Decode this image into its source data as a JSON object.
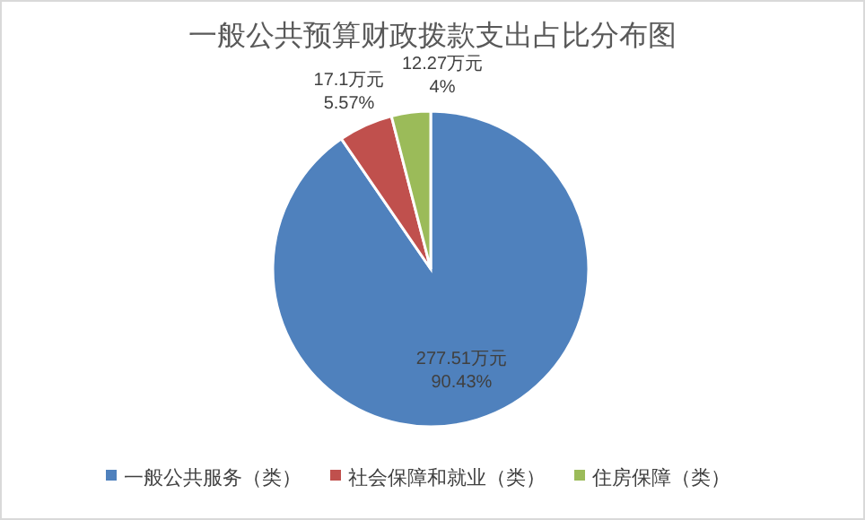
{
  "chart_data": {
    "type": "pie",
    "title": "一般公共预算财政拨款支出占比分布图",
    "categories": [
      "一般公共服务（类）",
      "社会保障和就业（类）",
      "住房保障（类）"
    ],
    "values": [
      90.43,
      5.57,
      4
    ],
    "colors": [
      "#4f81bd",
      "#c0504d",
      "#9bbb59"
    ],
    "value_labels": [
      [
        "277.51万元",
        "90.43%"
      ],
      [
        "17.1万元",
        "5.57%"
      ],
      [
        "12.27万元",
        "4%"
      ]
    ],
    "legend": "bottom"
  }
}
